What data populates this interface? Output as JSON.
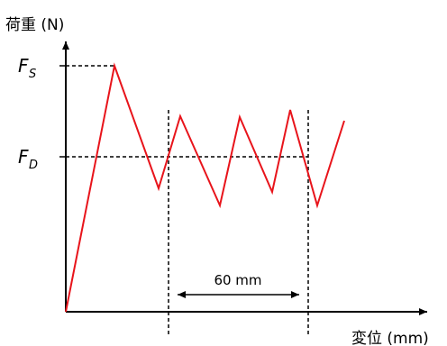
{
  "y_axis_label": "荷重 (N)",
  "x_axis_label": "変位 (mm)",
  "static_load": {
    "symbol": "F",
    "subscript": "S"
  },
  "dynamic_load": {
    "symbol": "F",
    "subscript": "D"
  },
  "span_label": "60 mm",
  "colors": {
    "curve": "#e8141b",
    "axes": "#000000",
    "guides": "#000000"
  }
}
